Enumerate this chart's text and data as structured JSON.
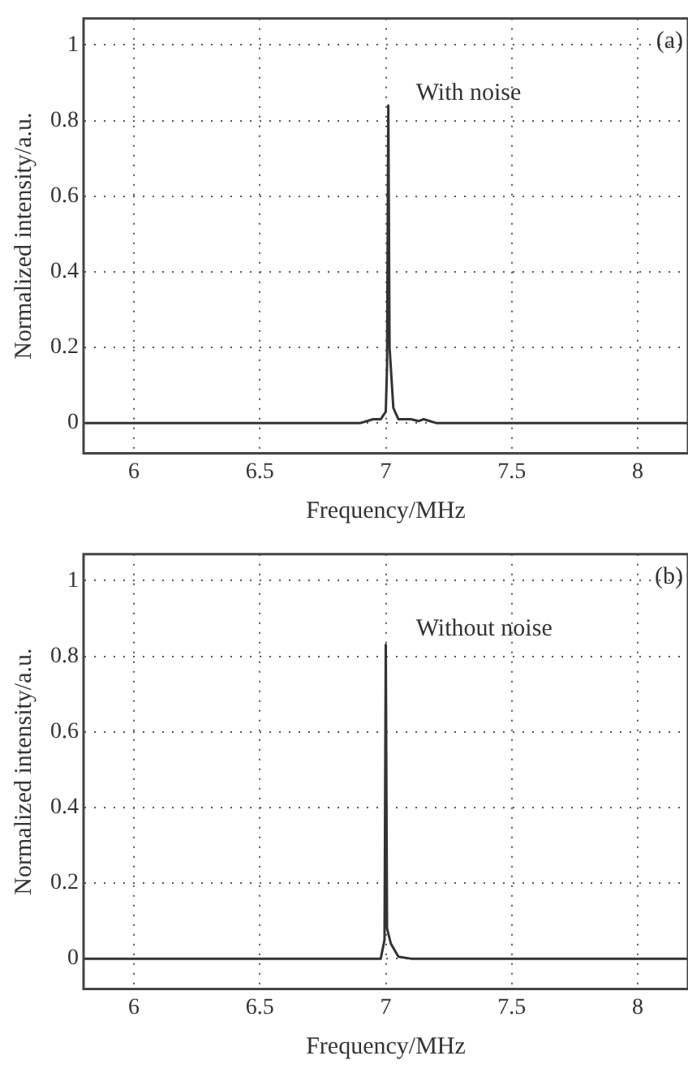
{
  "chart_data": [
    {
      "type": "line",
      "xlabel": "Frequency/MHz",
      "ylabel": "Normalized intensity/a.u.",
      "annotations": [
        "(a)",
        "With noise"
      ],
      "series": [
        {
          "color": "#333333",
          "x": [
            5.8,
            6.9,
            6.95,
            6.98,
            7.0,
            7.005,
            7.01,
            7.015,
            7.03,
            7.05,
            7.1,
            7.13,
            7.15,
            7.2,
            8.2
          ],
          "values": [
            0,
            0,
            0.01,
            0.01,
            0.03,
            0.15,
            0.84,
            0.2,
            0.04,
            0.01,
            0.01,
            0.005,
            0.01,
            0,
            0
          ]
        }
      ],
      "xlim": [
        5.8,
        8.2
      ],
      "xticks": [
        6,
        6.5,
        7,
        7.5,
        8
      ],
      "ylim": [
        -0.08,
        1.07
      ],
      "yticks": [
        0,
        0.2,
        0.4,
        0.6,
        0.8,
        1
      ],
      "grid": true,
      "legend": false,
      "line_style": "solid",
      "marker": "none"
    },
    {
      "type": "line",
      "xlabel": "Frequency/MHz",
      "ylabel": "Normalized intensity/a.u.",
      "annotations": [
        "(b)",
        "Without noise"
      ],
      "series": [
        {
          "color": "#333333",
          "x": [
            5.8,
            6.98,
            6.995,
            7.0,
            7.005,
            7.02,
            7.05,
            7.1,
            8.2
          ],
          "values": [
            0,
            0,
            0.05,
            0.83,
            0.08,
            0.04,
            0.005,
            0,
            0
          ]
        }
      ],
      "xlim": [
        5.8,
        8.2
      ],
      "xticks": [
        6,
        6.5,
        7,
        7.5,
        8
      ],
      "ylim": [
        -0.08,
        1.07
      ],
      "yticks": [
        0,
        0.2,
        0.4,
        0.6,
        0.8,
        1
      ],
      "grid": true,
      "legend": false,
      "line_style": "solid",
      "marker": "none"
    }
  ]
}
